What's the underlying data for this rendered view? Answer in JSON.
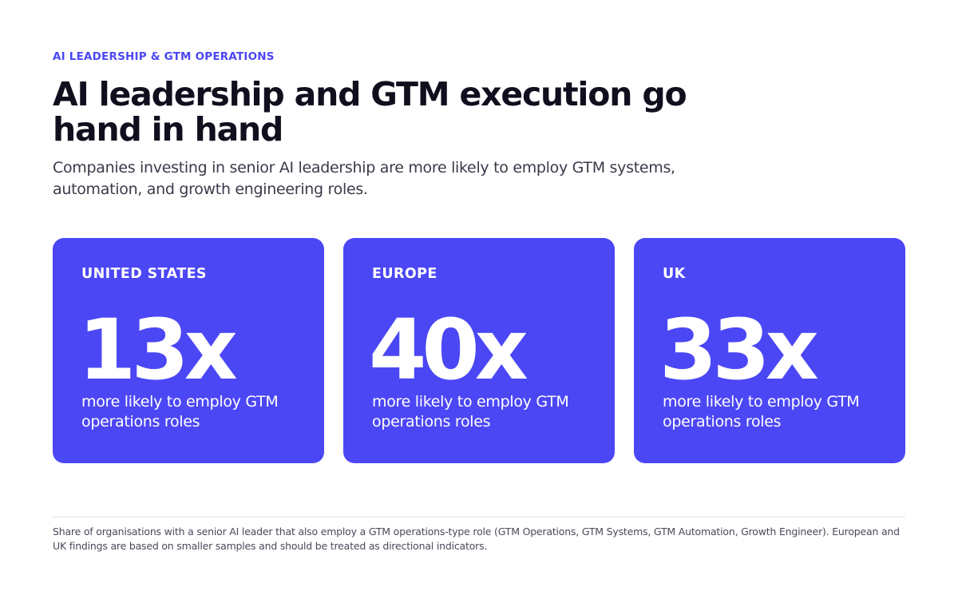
{
  "header": {
    "eyebrow": "AI LEADERSHIP & GTM OPERATIONS",
    "title": "AI leadership and GTM execution go hand in hand",
    "subtitle": "Companies investing in senior AI leadership are more likely to employ GTM systems, automation, and growth engineering roles."
  },
  "cards": [
    {
      "region": "UNITED STATES",
      "value": "13x",
      "description": "more likely to employ GTM operations roles"
    },
    {
      "region": "EUROPE",
      "value": "40x",
      "description": "more likely to employ GTM operations roles"
    },
    {
      "region": "UK",
      "value": "33x",
      "description": "more likely to employ GTM operations roles"
    }
  ],
  "footnote": "Share of organisations with a senior AI leader that also employ a GTM operations-type role (GTM Operations, GTM Systems, GTM Automation, Growth Engineer). European and UK findings are based on smaller samples and should be treated as directional indicators.",
  "colors": {
    "accent": "#4b47f5",
    "card_text": "#ffffff",
    "heading": "#0f0f1e"
  }
}
